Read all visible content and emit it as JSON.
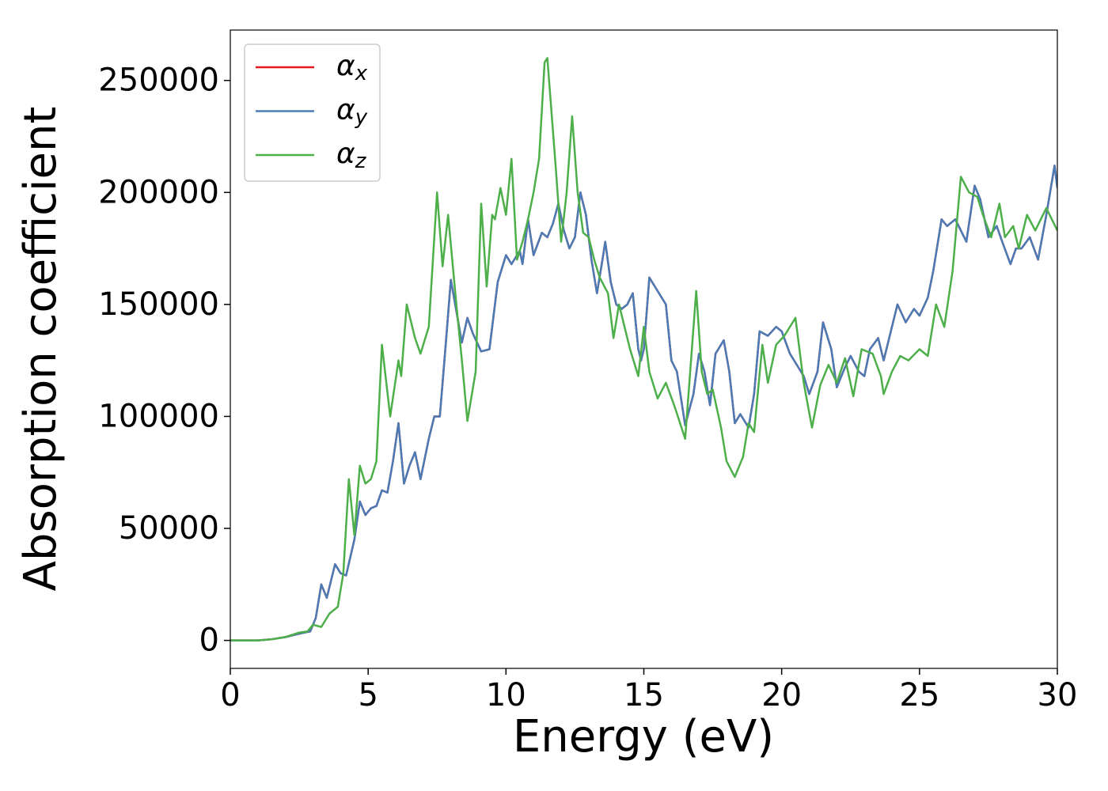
{
  "chart_data": {
    "type": "line",
    "xlabel": "Energy (eV)",
    "ylabel": "Absorption coefficient",
    "xlim": [
      0,
      30
    ],
    "xticks": [
      0,
      5,
      10,
      15,
      20,
      25,
      30
    ],
    "ylim": [
      -12500,
      272500
    ],
    "yticks": [
      0,
      50000,
      100000,
      150000,
      200000,
      250000
    ],
    "legend": "upper left",
    "grid": false,
    "series": [
      {
        "name": "αx",
        "color": "#e41a1c",
        "x": [
          0,
          1,
          1.5,
          2,
          2.5,
          2.9,
          3.1,
          3.3,
          3.5,
          3.8,
          4.0,
          4.2,
          4.5,
          4.7,
          4.9,
          5.1,
          5.3,
          5.5,
          5.7,
          5.9,
          6.1,
          6.3,
          6.5,
          6.7,
          6.9,
          7.2,
          7.4,
          7.6,
          7.8,
          8.0,
          8.3,
          8.4,
          8.6,
          8.8,
          9.1,
          9.4,
          9.7,
          10.0,
          10.2,
          10.5,
          10.6,
          10.8,
          11.0,
          11.3,
          11.5,
          11.7,
          11.9,
          12.1,
          12.3,
          12.5,
          12.7,
          12.9,
          13.1,
          13.3,
          13.5,
          13.6,
          13.8,
          14.0,
          14.2,
          14.4,
          14.6,
          14.8,
          14.9,
          15.0,
          15.2,
          15.5,
          15.8,
          16.0,
          16.2,
          16.5,
          16.8,
          17.0,
          17.2,
          17.4,
          17.6,
          17.9,
          18.1,
          18.3,
          18.5,
          18.8,
          19.0,
          19.2,
          19.5,
          19.8,
          20.0,
          20.3,
          20.6,
          20.8,
          21.0,
          21.3,
          21.5,
          21.8,
          22.0,
          22.3,
          22.5,
          22.8,
          23.0,
          23.2,
          23.5,
          23.7,
          24.0,
          24.2,
          24.5,
          24.8,
          25.0,
          25.3,
          25.5,
          25.8,
          26.0,
          26.3,
          26.7,
          27.0,
          27.2,
          27.5,
          27.8,
          28.0,
          28.3,
          28.5,
          28.7,
          29.0,
          29.3,
          29.6,
          29.9,
          30.0
        ],
        "values": [
          0,
          0,
          500,
          1500,
          3000,
          4000,
          10000,
          25000,
          19000,
          34000,
          30000,
          29000,
          45000,
          62000,
          56000,
          59000,
          60000,
          67000,
          66000,
          80000,
          97000,
          70000,
          78000,
          84000,
          72000,
          90000,
          100000,
          100000,
          130000,
          161000,
          140000,
          133000,
          144000,
          137000,
          129000,
          130000,
          160000,
          172000,
          168000,
          174000,
          168000,
          188000,
          172000,
          182000,
          180000,
          186000,
          195000,
          183000,
          175000,
          180000,
          200000,
          190000,
          170000,
          155000,
          170000,
          178000,
          160000,
          150000,
          148000,
          150000,
          155000,
          130000,
          125000,
          130000,
          162000,
          156000,
          150000,
          125000,
          120000,
          96000,
          110000,
          128000,
          120000,
          105000,
          128000,
          134000,
          120000,
          97000,
          101000,
          95000,
          110000,
          138000,
          136000,
          140000,
          138000,
          128000,
          122000,
          118000,
          110000,
          120000,
          142000,
          130000,
          113000,
          122000,
          127000,
          120000,
          118000,
          130000,
          135000,
          125000,
          140000,
          150000,
          142000,
          148000,
          145000,
          153000,
          165000,
          188000,
          185000,
          188000,
          178000,
          203000,
          197000,
          180000,
          185000,
          178000,
          168000,
          175000,
          175000,
          180000,
          170000,
          190000,
          212000,
          202000
        ]
      },
      {
        "name": "αy",
        "color": "#4a7bb5",
        "x": [
          0,
          1,
          1.5,
          2,
          2.5,
          2.9,
          3.1,
          3.3,
          3.5,
          3.8,
          4.0,
          4.2,
          4.5,
          4.7,
          4.9,
          5.1,
          5.3,
          5.5,
          5.7,
          5.9,
          6.1,
          6.3,
          6.5,
          6.7,
          6.9,
          7.2,
          7.4,
          7.6,
          7.8,
          8.0,
          8.3,
          8.4,
          8.6,
          8.8,
          9.1,
          9.4,
          9.7,
          10.0,
          10.2,
          10.5,
          10.6,
          10.8,
          11.0,
          11.3,
          11.5,
          11.7,
          11.9,
          12.1,
          12.3,
          12.5,
          12.7,
          12.9,
          13.1,
          13.3,
          13.5,
          13.6,
          13.8,
          14.0,
          14.2,
          14.4,
          14.6,
          14.8,
          14.9,
          15.0,
          15.2,
          15.5,
          15.8,
          16.0,
          16.2,
          16.5,
          16.8,
          17.0,
          17.2,
          17.4,
          17.6,
          17.9,
          18.1,
          18.3,
          18.5,
          18.8,
          19.0,
          19.2,
          19.5,
          19.8,
          20.0,
          20.3,
          20.6,
          20.8,
          21.0,
          21.3,
          21.5,
          21.8,
          22.0,
          22.3,
          22.5,
          22.8,
          23.0,
          23.2,
          23.5,
          23.7,
          24.0,
          24.2,
          24.5,
          24.8,
          25.0,
          25.3,
          25.5,
          25.8,
          26.0,
          26.3,
          26.7,
          27.0,
          27.2,
          27.5,
          27.8,
          28.0,
          28.3,
          28.5,
          28.7,
          29.0,
          29.3,
          29.6,
          29.9,
          30.0
        ],
        "values": [
          0,
          0,
          500,
          1500,
          3000,
          4000,
          10000,
          25000,
          19000,
          34000,
          30000,
          29000,
          45000,
          62000,
          56000,
          59000,
          60000,
          67000,
          66000,
          80000,
          97000,
          70000,
          78000,
          84000,
          72000,
          90000,
          100000,
          100000,
          130000,
          161000,
          140000,
          133000,
          144000,
          137000,
          129000,
          130000,
          160000,
          172000,
          168000,
          174000,
          168000,
          188000,
          172000,
          182000,
          180000,
          186000,
          195000,
          183000,
          175000,
          180000,
          200000,
          190000,
          170000,
          155000,
          170000,
          178000,
          160000,
          150000,
          148000,
          150000,
          155000,
          130000,
          125000,
          130000,
          162000,
          156000,
          150000,
          125000,
          120000,
          96000,
          110000,
          128000,
          120000,
          105000,
          128000,
          134000,
          120000,
          97000,
          101000,
          95000,
          110000,
          138000,
          136000,
          140000,
          138000,
          128000,
          122000,
          118000,
          110000,
          120000,
          142000,
          130000,
          113000,
          122000,
          127000,
          120000,
          118000,
          130000,
          135000,
          125000,
          140000,
          150000,
          142000,
          148000,
          145000,
          153000,
          165000,
          188000,
          185000,
          188000,
          178000,
          203000,
          197000,
          180000,
          185000,
          178000,
          168000,
          175000,
          175000,
          180000,
          170000,
          190000,
          212000,
          202000
        ]
      },
      {
        "name": "αz",
        "color": "#4daf4a",
        "x": [
          0,
          1,
          1.5,
          2,
          2.5,
          2.8,
          3.0,
          3.3,
          3.6,
          3.9,
          4.1,
          4.3,
          4.5,
          4.7,
          4.9,
          5.1,
          5.3,
          5.5,
          5.8,
          6.1,
          6.2,
          6.4,
          6.7,
          6.9,
          7.2,
          7.5,
          7.7,
          7.9,
          8.2,
          8.4,
          8.6,
          8.9,
          9.1,
          9.3,
          9.5,
          9.6,
          9.8,
          10.0,
          10.2,
          10.4,
          10.6,
          10.8,
          11.0,
          11.2,
          11.4,
          11.5,
          11.8,
          12.0,
          12.2,
          12.4,
          12.6,
          12.8,
          13.0,
          13.2,
          13.4,
          13.7,
          13.9,
          14.1,
          14.3,
          14.5,
          14.8,
          15.0,
          15.2,
          15.5,
          15.8,
          16.1,
          16.5,
          16.9,
          17.1,
          17.3,
          17.5,
          17.8,
          18.0,
          18.3,
          18.6,
          18.8,
          19.0,
          19.3,
          19.5,
          19.8,
          20.1,
          20.5,
          20.8,
          21.1,
          21.4,
          21.7,
          22.0,
          22.3,
          22.6,
          22.9,
          23.3,
          23.6,
          23.7,
          24.0,
          24.3,
          24.6,
          25.0,
          25.3,
          25.6,
          25.9,
          26.2,
          26.5,
          26.8,
          27.1,
          27.3,
          27.6,
          27.9,
          28.1,
          28.4,
          28.6,
          28.9,
          29.2,
          29.6,
          30.0
        ],
        "values": [
          0,
          0,
          500,
          1500,
          3500,
          4000,
          7000,
          6000,
          12000,
          15000,
          30000,
          72000,
          47000,
          78000,
          70000,
          72000,
          80000,
          132000,
          100000,
          125000,
          118000,
          150000,
          135000,
          128000,
          140000,
          200000,
          167000,
          190000,
          150000,
          125000,
          98000,
          120000,
          195000,
          158000,
          190000,
          188000,
          202000,
          190000,
          215000,
          170000,
          178000,
          188000,
          200000,
          215000,
          258000,
          260000,
          212000,
          178000,
          200000,
          234000,
          200000,
          182000,
          180000,
          170000,
          162000,
          155000,
          135000,
          150000,
          140000,
          130000,
          118000,
          140000,
          120000,
          108000,
          115000,
          105000,
          90000,
          156000,
          120000,
          110000,
          112000,
          95000,
          80000,
          73000,
          82000,
          97000,
          93000,
          132000,
          115000,
          132000,
          136000,
          144000,
          115000,
          95000,
          114000,
          123000,
          115000,
          126000,
          109000,
          130000,
          128000,
          118000,
          110000,
          120000,
          127000,
          125000,
          130000,
          127000,
          150000,
          140000,
          165000,
          207000,
          200000,
          198000,
          190000,
          180000,
          195000,
          180000,
          185000,
          175000,
          190000,
          183000,
          193000,
          183000
        ]
      }
    ]
  }
}
